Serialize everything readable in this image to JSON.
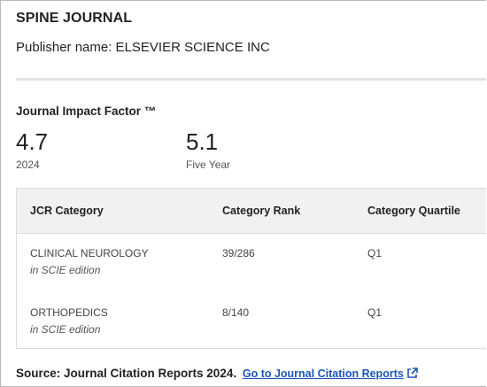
{
  "journal": {
    "title": "SPINE JOURNAL",
    "publisher_line": "Publisher name: ELSEVIER SCIENCE INC"
  },
  "impact": {
    "heading": "Journal Impact Factor ™",
    "metrics": [
      {
        "value": "4.7",
        "label": "2024"
      },
      {
        "value": "5.1",
        "label": "Five Year"
      }
    ]
  },
  "jcr_table": {
    "headers": {
      "category": "JCR Category",
      "rank": "Category Rank",
      "quartile": "Category Quartile"
    },
    "rows": [
      {
        "category": "CLINICAL NEUROLOGY",
        "edition": "in SCIE edition",
        "rank": "39/286",
        "quartile": "Q1"
      },
      {
        "category": "ORTHOPEDICS",
        "edition": "in SCIE edition",
        "rank": "8/140",
        "quartile": "Q1"
      }
    ]
  },
  "source": {
    "label": "Source: Journal Citation Reports",
    "year": "2024.",
    "link_text": "Go to Journal Citation Reports",
    "link_icon": "external-link-icon",
    "link_color": "#1a56b8"
  }
}
